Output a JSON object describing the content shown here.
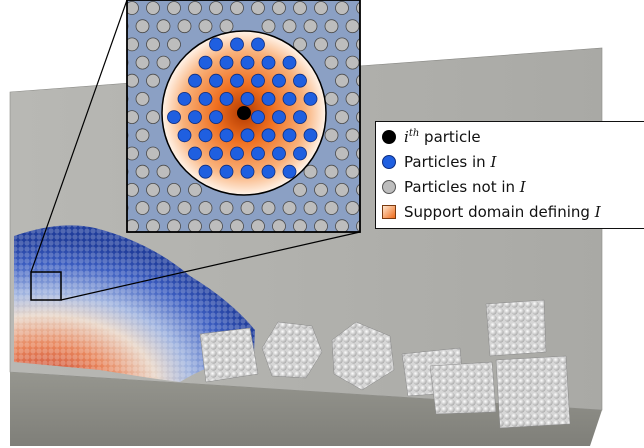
{
  "legend": {
    "items": [
      {
        "symbol": "black-circle",
        "prefix": "i",
        "sup": "th",
        "text": " particle"
      },
      {
        "symbol": "blue-circle",
        "text": "Particles in ",
        "math": "I"
      },
      {
        "symbol": "grey-circle",
        "text": "Particles not in ",
        "math": "I"
      },
      {
        "symbol": "orange-square",
        "text": "Support domain defining ",
        "math": "I"
      }
    ]
  },
  "colors": {
    "wall": "#bfbfbb",
    "floor": "#8e8e89",
    "inset_background": "#8ba0c4",
    "support_domain_center": "#e05a10",
    "particle_in": "#1f5fe0",
    "particle_out": "#bdbdbd",
    "ith_particle": "#000000"
  }
}
